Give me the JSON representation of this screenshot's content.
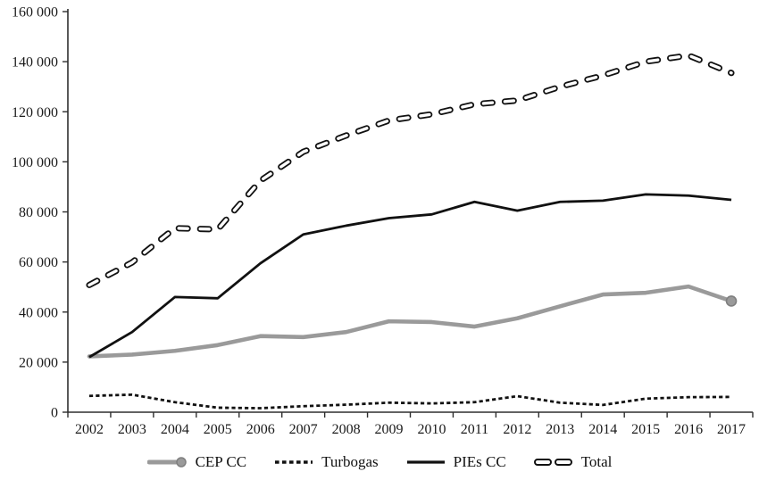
{
  "figure": {
    "background_color": "#ffffff",
    "axis_color": "#2e2e2e",
    "text_color": "#1a1a1a"
  },
  "chart_data": {
    "type": "line",
    "title": "",
    "xlabel": "",
    "ylabel": "",
    "grid": false,
    "legend_position": "bottom",
    "ylim": [
      0,
      160000
    ],
    "ytick_step": 20000,
    "ytick_labels": [
      "0",
      "20 000",
      "40 000",
      "60 000",
      "80 000",
      "100 000",
      "120 000",
      "140 000",
      "160 000"
    ],
    "x_categories": [
      "2002",
      "2003",
      "2004",
      "2005",
      "2006",
      "2007",
      "2008",
      "2009",
      "2010",
      "2011",
      "2012",
      "2013",
      "2014",
      "2015",
      "2016",
      "2017"
    ],
    "series": [
      {
        "name": "CEP CC",
        "style": "thick-gray",
        "color": "#9a9a9a",
        "marker_edge_color": "#7f7f7f",
        "end_marker": "circle",
        "values": [
          22300,
          23000,
          24500,
          26800,
          30400,
          30000,
          32000,
          36300,
          36000,
          34200,
          37500,
          42300,
          47000,
          47700,
          50200,
          44400
        ]
      },
      {
        "name": "Turbogas",
        "style": "dotted",
        "color": "#111111",
        "end_marker": "none",
        "values": [
          6500,
          7000,
          4000,
          1800,
          1600,
          2400,
          3000,
          3800,
          3500,
          4000,
          6400,
          3800,
          2900,
          5400,
          6000,
          6100
        ]
      },
      {
        "name": "PIEs CC",
        "style": "solid",
        "color": "#111111",
        "end_marker": "none",
        "values": [
          22000,
          32000,
          46000,
          45500,
          59500,
          71000,
          74500,
          77500,
          79000,
          84000,
          80500,
          84000,
          84500,
          87000,
          86500,
          84800
        ]
      },
      {
        "name": "Total",
        "style": "hollow-dash",
        "color": "#111111",
        "end_marker": "none",
        "values": [
          50800,
          59800,
          73500,
          73000,
          92500,
          104000,
          110500,
          116500,
          119000,
          123000,
          124500,
          130000,
          134500,
          140000,
          142500,
          135500
        ]
      }
    ]
  }
}
